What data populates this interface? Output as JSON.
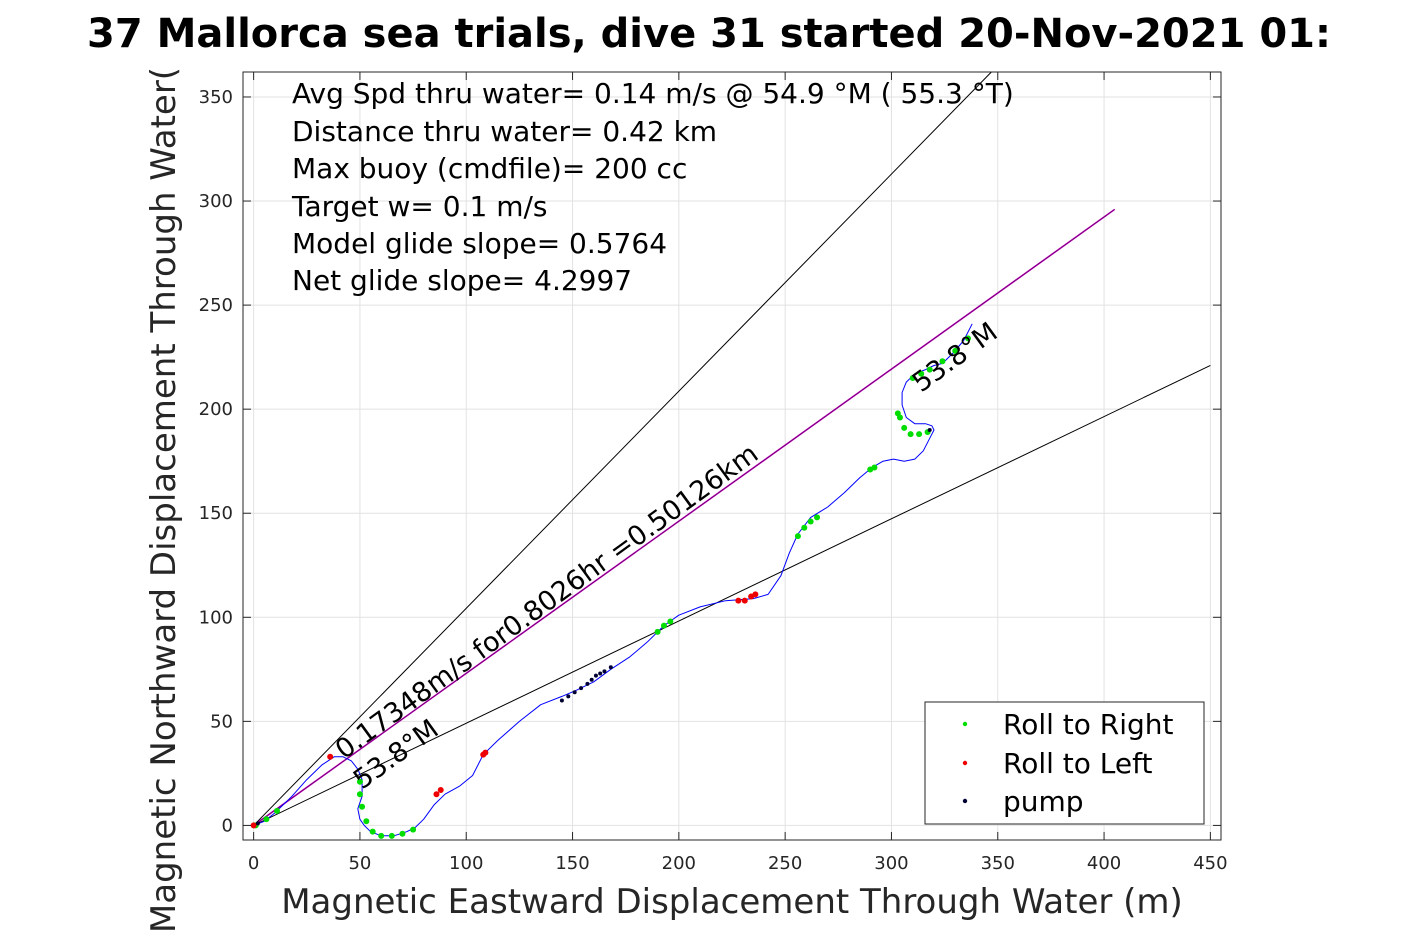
{
  "chart_data": {
    "type": "line",
    "title": "37 Mallorca sea trials, dive 31 started 20-Nov-2021 01:",
    "xlabel": "Magnetic Eastward Displacement Through Water (m)",
    "ylabel": "Magnetic Northward Displacement Through Water(",
    "xlim": [
      -5,
      455
    ],
    "ylim": [
      -7,
      362
    ],
    "xticks": [
      0,
      50,
      100,
      150,
      200,
      250,
      300,
      350,
      400,
      450
    ],
    "yticks": [
      0,
      50,
      100,
      150,
      200,
      250,
      300,
      350
    ],
    "grid": true,
    "stats": [
      "Avg Spd thru water=  0.14 m/s @  54.9 °M ( 55.3 °T)",
      "Distance thru water=  0.42 km",
      "Max buoy (cmdfile)= 200 cc",
      "Target w= 0.1 m/s",
      "Model glide slope= 0.5764",
      "Net glide slope= 4.2997"
    ],
    "annotations": {
      "speed_label": "0.17348m/s for0.8026hr =0.50126km",
      "heading_label_start": "53.8°M",
      "heading_label_end": "53.8°M"
    },
    "reference_lines": [
      {
        "x": [
          0,
          347
        ],
        "y": [
          0,
          362
        ]
      },
      {
        "x": [
          0,
          405
        ],
        "y": [
          0,
          296
        ]
      },
      {
        "x": [
          0,
          450
        ],
        "y": [
          0,
          221
        ]
      }
    ],
    "track": {
      "x": [
        0,
        5,
        10,
        18,
        25,
        32,
        38,
        42,
        46,
        49,
        51,
        51,
        49,
        50,
        52,
        55,
        60,
        66,
        72,
        76,
        80,
        85,
        90,
        97,
        103,
        108,
        115,
        125,
        135,
        145,
        152,
        160,
        168,
        177,
        185,
        193,
        200,
        210,
        222,
        235,
        242,
        248,
        252,
        256,
        262,
        270,
        278,
        285,
        291,
        296,
        301,
        306,
        311,
        315,
        318,
        320,
        319,
        316,
        311,
        307,
        305,
        305,
        307,
        311,
        316,
        320,
        324,
        329,
        334,
        338
      ],
      "y": [
        0,
        2,
        6,
        14,
        22,
        29,
        33,
        33,
        31,
        27,
        22,
        14,
        8,
        3,
        0,
        -3,
        -5,
        -5,
        -3,
        -1,
        3,
        10,
        15,
        19,
        24,
        34,
        41,
        50,
        58,
        62,
        65,
        69,
        75,
        81,
        88,
        96,
        101,
        105,
        108,
        109,
        111,
        120,
        131,
        140,
        148,
        153,
        160,
        167,
        172,
        175,
        176,
        175,
        176,
        180,
        186,
        190,
        192,
        193,
        193,
        196,
        202,
        208,
        213,
        217,
        219,
        221,
        222,
        227,
        233,
        241
      ],
      "color": "#0000ff"
    },
    "model_line_color": "#c000c0",
    "series": [
      {
        "name": "Roll to Right",
        "color": "#00dd00",
        "x": [
          1,
          6,
          11,
          50,
          50,
          51,
          53,
          56,
          60,
          65,
          70,
          75,
          190,
          193,
          196,
          256,
          259,
          262,
          265,
          290,
          292,
          303,
          304,
          306,
          309,
          313,
          317,
          310,
          314,
          318,
          324,
          330,
          336
        ],
        "y": [
          0,
          3,
          7,
          21,
          15,
          9,
          2,
          -3,
          -5,
          -5,
          -4,
          -2,
          93,
          96,
          98,
          139,
          143,
          146,
          148,
          171,
          172,
          198,
          196,
          191,
          188,
          188,
          189,
          215,
          217,
          219,
          223,
          228,
          234
        ]
      },
      {
        "name": "Roll to Left",
        "color": "#ee0000",
        "x": [
          0,
          36,
          86,
          88,
          108,
          109,
          228,
          231,
          234,
          236
        ],
        "y": [
          0,
          33,
          15,
          17,
          34,
          35,
          108,
          108,
          110,
          111
        ]
      },
      {
        "name": "pump",
        "color": "#000033",
        "x": [
          2,
          145,
          148,
          151,
          154,
          157,
          159,
          161,
          163,
          165,
          168,
          318
        ],
        "y": [
          1,
          60,
          62,
          64,
          66,
          68,
          70,
          72,
          73,
          74,
          76,
          190
        ]
      }
    ],
    "legend_position": "bottom-right"
  }
}
